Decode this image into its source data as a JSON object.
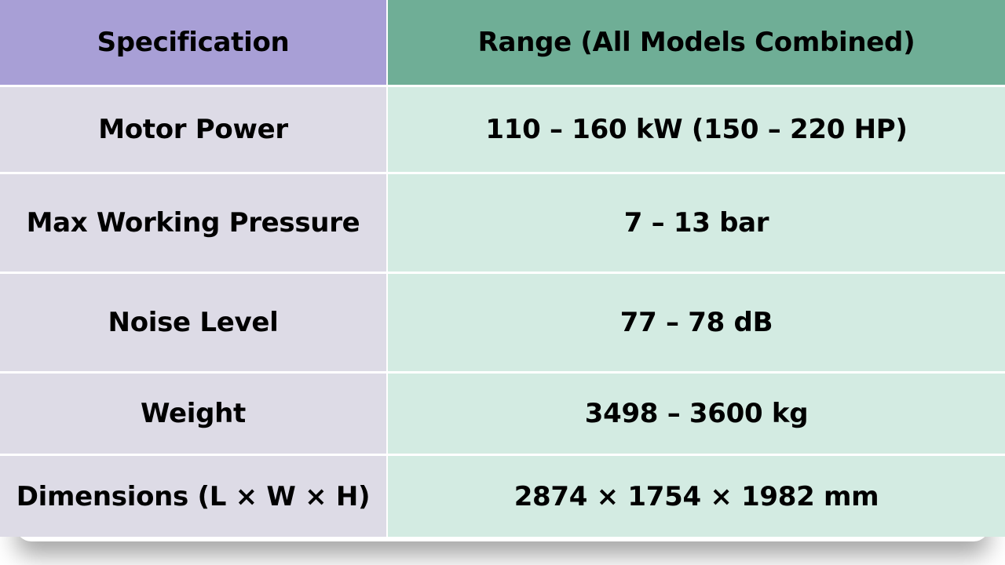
{
  "table": {
    "header": [
      "Specification",
      "Range (All Models Combined)"
    ],
    "rows": [
      [
        "Motor Power",
        "110 – 160 kW (150 – 220 HP)"
      ],
      [
        "Max Working Pressure",
        "7 – 13 bar"
      ],
      [
        "Noise Level",
        "77 – 78 dB"
      ],
      [
        "Weight",
        "3498 – 3600 kg"
      ],
      [
        "Dimensions (L × W × H)",
        "2874 × 1754 × 1982 mm"
      ]
    ]
  }
}
